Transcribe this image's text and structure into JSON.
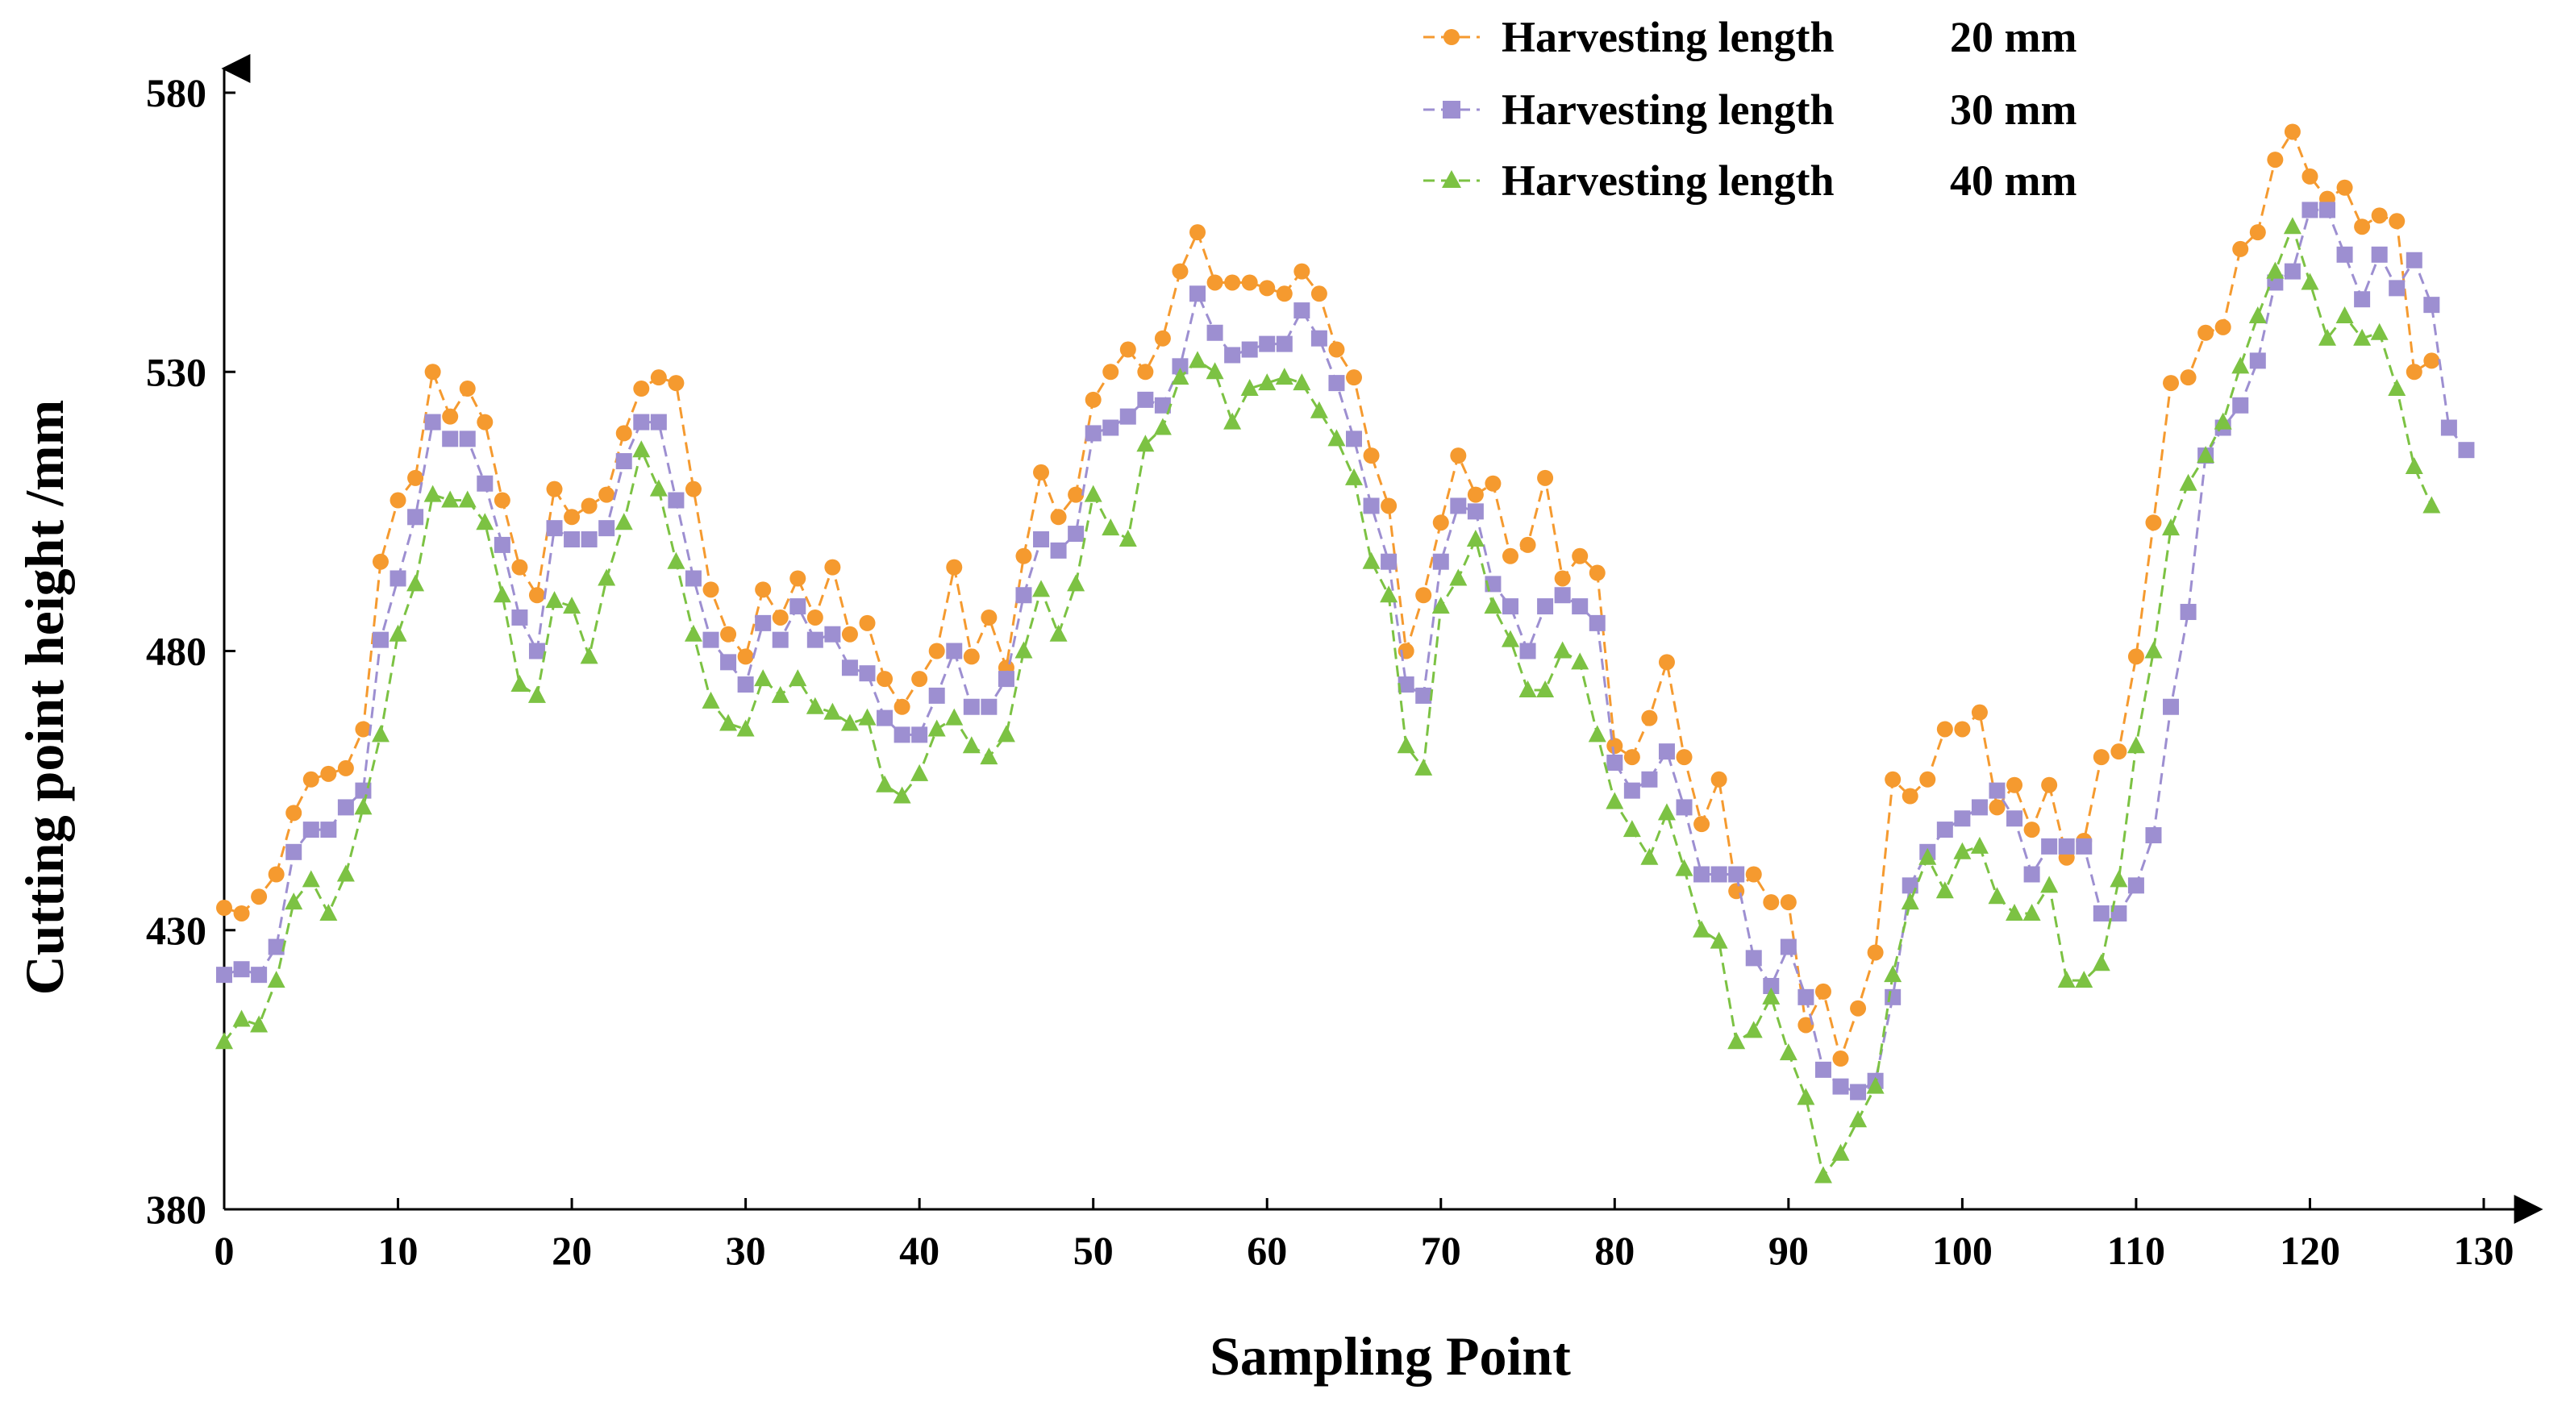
{
  "chart_data": {
    "type": "line",
    "title": "",
    "xlabel": "Sampling Point",
    "ylabel": "Cutting point height  /mm",
    "xlim": [
      0,
      130
    ],
    "ylim": [
      380,
      580
    ],
    "xticks": [
      "0",
      "10",
      "20",
      "30",
      "40",
      "50",
      "60",
      "70",
      "80",
      "90",
      "100",
      "110",
      "120",
      "130"
    ],
    "yticks": [
      "380",
      "430",
      "480",
      "530",
      "580"
    ],
    "legend_position": "top-right",
    "series": [
      {
        "name": "Harvesting length",
        "length_label": "20 mm",
        "color": "#F59A2F",
        "marker": "circle",
        "values": [
          434,
          433,
          436,
          440,
          451,
          457,
          458,
          459,
          466,
          496,
          507,
          511,
          530,
          522,
          527,
          521,
          507,
          495,
          490,
          509,
          504,
          506,
          508,
          519,
          527,
          529,
          528,
          509,
          491,
          483,
          479,
          491,
          486,
          493,
          486,
          495,
          483,
          485,
          475,
          470,
          475,
          480,
          495,
          479,
          486,
          477,
          497,
          512,
          504,
          508,
          525,
          530,
          534,
          530,
          536,
          548,
          555,
          546,
          546,
          546,
          545,
          544,
          548,
          544,
          534,
          529,
          515,
          506,
          480,
          490,
          503,
          515,
          508,
          510,
          497,
          499,
          511,
          493,
          497,
          494,
          463,
          461,
          468,
          478,
          461,
          449,
          457,
          437,
          440,
          435,
          435,
          413,
          419,
          407,
          416,
          426,
          457,
          454,
          457,
          466,
          466,
          469,
          452,
          456,
          448,
          456,
          443,
          446,
          461,
          462,
          479,
          503,
          528,
          529,
          537,
          538,
          552,
          555,
          568,
          573,
          565,
          561,
          563,
          556,
          558,
          557,
          530,
          532
        ]
      },
      {
        "name": "Harvesting length",
        "length_label": "30 mm",
        "color": "#9D8FD1",
        "marker": "square",
        "values": [
          422,
          423,
          422,
          427,
          444,
          448,
          448,
          452,
          455,
          482,
          493,
          504,
          521,
          518,
          518,
          510,
          499,
          486,
          480,
          502,
          500,
          500,
          502,
          514,
          521,
          521,
          507,
          493,
          482,
          478,
          474,
          485,
          482,
          488,
          482,
          483,
          477,
          476,
          468,
          465,
          465,
          472,
          480,
          470,
          470,
          475,
          490,
          500,
          498,
          501,
          519,
          520,
          522,
          525,
          524,
          531,
          544,
          537,
          533,
          534,
          535,
          535,
          541,
          536,
          528,
          518,
          506,
          496,
          474,
          472,
          496,
          506,
          505,
          492,
          488,
          480,
          488,
          490,
          488,
          485,
          460,
          455,
          457,
          462,
          452,
          440,
          440,
          440,
          425,
          420,
          427,
          418,
          405,
          402,
          401,
          403,
          418,
          438,
          444,
          448,
          450,
          452,
          455,
          450,
          440,
          445,
          445,
          445,
          433,
          433,
          438,
          447,
          470,
          487,
          515,
          520,
          524,
          532,
          546,
          548,
          559,
          559,
          551,
          543,
          551,
          545,
          550,
          542,
          520,
          516
        ]
      },
      {
        "name": "Harvesting length",
        "length_label": "40 mm",
        "color": "#7CC243",
        "marker": "triangle",
        "values": [
          410,
          414,
          413,
          421,
          435,
          439,
          433,
          440,
          452,
          465,
          483,
          492,
          508,
          507,
          507,
          503,
          490,
          474,
          472,
          489,
          488,
          479,
          493,
          503,
          516,
          509,
          496,
          483,
          471,
          467,
          466,
          475,
          472,
          475,
          470,
          469,
          467,
          468,
          456,
          454,
          458,
          466,
          468,
          463,
          461,
          465,
          480,
          491,
          483,
          492,
          508,
          502,
          500,
          517,
          520,
          529,
          532,
          530,
          521,
          527,
          528,
          529,
          528,
          523,
          518,
          511,
          496,
          490,
          463,
          459,
          488,
          493,
          500,
          488,
          482,
          473,
          473,
          480,
          478,
          465,
          453,
          448,
          443,
          451,
          441,
          430,
          428,
          410,
          412,
          418,
          408,
          400,
          386,
          390,
          396,
          402,
          422,
          435,
          443,
          437,
          444,
          445,
          436,
          433,
          433,
          438,
          421,
          421,
          424,
          439,
          463,
          480,
          502,
          510,
          515,
          521,
          531,
          540,
          548,
          556,
          546,
          536,
          540,
          536,
          537,
          527,
          513,
          506
        ]
      }
    ]
  }
}
